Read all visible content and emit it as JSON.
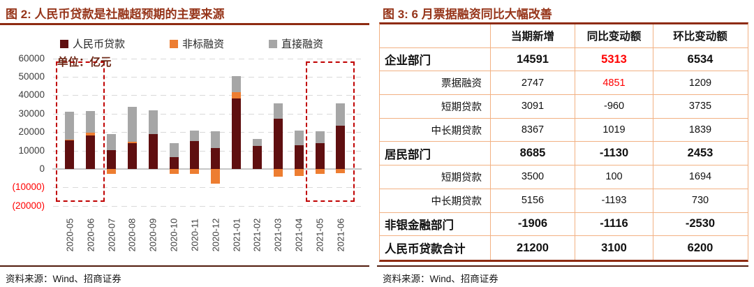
{
  "colors": {
    "accent_dark_red": "#8e2b12",
    "title_text": "#96351a",
    "bar_loans": "#5f0f10",
    "bar_nonstandard": "#ed7d31",
    "bar_direct": "#a6a6a6",
    "highlight_box_red": "#c00000",
    "negative_value_red": "#ff0000",
    "table_grid_orange": "#f2b183",
    "footer_rule": "#511b0c"
  },
  "chart_data": [
    {
      "type": "bar",
      "stacked": true,
      "title": "图 2: 人民币贷款是社融超预期的主要来源",
      "unit_label": "单位：亿元",
      "source": "资料来源：Wind、招商证券",
      "legend_position": "top",
      "grid": "dashed-horizontal",
      "ylim": [
        -20000,
        60000
      ],
      "ytick_interval": 10000,
      "negative_tick_format": "(value) in red",
      "categories": [
        "2020-05",
        "2020-06",
        "2020-07",
        "2020-08",
        "2020-09",
        "2020-10",
        "2020-11",
        "2020-12",
        "2021-01",
        "2021-02",
        "2021-03",
        "2021-04",
        "2021-05",
        "2021-06"
      ],
      "series": [
        {
          "name": "人民币贷款",
          "color": "#5f0f10",
          "values": [
            15500,
            18300,
            10100,
            13900,
            19100,
            6300,
            15000,
            11200,
            38200,
            12500,
            27300,
            12700,
            14000,
            23300
          ]
        },
        {
          "name": "非标融资",
          "color": "#ed7d31",
          "values": [
            300,
            1300,
            -2800,
            1000,
            0,
            -2700,
            -2700,
            -8000,
            3300,
            0,
            -4100,
            -3800,
            -2800,
            -2200
          ]
        },
        {
          "name": "直接融资",
          "color": "#a6a6a6",
          "values": [
            15100,
            12000,
            8900,
            18700,
            12600,
            7900,
            6000,
            9200,
            8800,
            3800,
            8300,
            8300,
            6400,
            12300
          ]
        }
      ],
      "highlighted_index_ranges": [
        [
          0,
          1
        ],
        [
          12,
          13
        ]
      ]
    },
    {
      "type": "table",
      "title": "图 3: 6 月票据融资同比大幅改善",
      "source": "资料来源：Wind、招商证券",
      "columns": [
        "",
        "当期新增",
        "同比变动额",
        "环比变动额"
      ],
      "rows": [
        {
          "label": "企业部门",
          "style": "bold",
          "values": [
            "14591",
            "5313",
            "6534"
          ],
          "red_value_cols": [
            1
          ]
        },
        {
          "label": "票据融资",
          "style": "sub",
          "values": [
            "2747",
            "4851",
            "1209"
          ],
          "red_value_cols": [
            1
          ]
        },
        {
          "label": "短期贷款",
          "style": "sub",
          "values": [
            "3091",
            "-960",
            "3735"
          ],
          "red_value_cols": []
        },
        {
          "label": "中长期贷款",
          "style": "sub",
          "values": [
            "8367",
            "1019",
            "1839"
          ],
          "red_value_cols": []
        },
        {
          "label": "居民部门",
          "style": "bold",
          "values": [
            "8685",
            "-1130",
            "2453"
          ],
          "red_value_cols": []
        },
        {
          "label": "短期贷款",
          "style": "sub",
          "values": [
            "3500",
            "100",
            "1694"
          ],
          "red_value_cols": []
        },
        {
          "label": "中长期贷款",
          "style": "sub",
          "values": [
            "5156",
            "-1193",
            "730"
          ],
          "red_value_cols": []
        },
        {
          "label": "非银金融部门",
          "style": "bold",
          "values": [
            "-1906",
            "-1116",
            "-2530"
          ],
          "red_value_cols": []
        },
        {
          "label": "人民币贷款合计",
          "style": "bold",
          "values": [
            "21200",
            "3100",
            "6200"
          ],
          "red_value_cols": []
        }
      ]
    }
  ]
}
